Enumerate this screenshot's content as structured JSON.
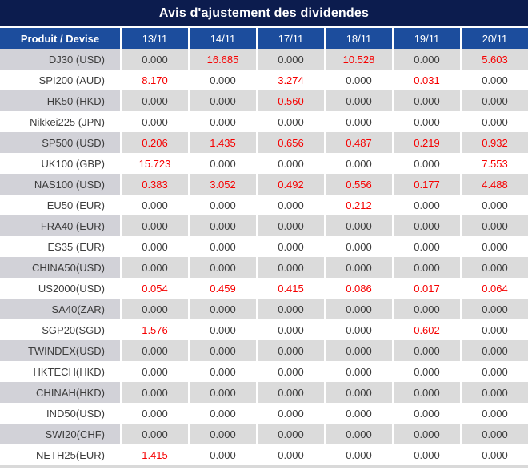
{
  "title": "Avis d'ajustement des dividendes",
  "colors": {
    "title_bg": "#0c1c4e",
    "header_bg": "#1c4d9d",
    "gray_row": "#dbdbdb",
    "gray_first_col": "#d2d2d8",
    "grid_line": "#d9d9d9",
    "nonzero_red": "#f60000",
    "value_text": "#3d3d3d"
  },
  "chart_data": {
    "type": "table",
    "title": "Avis d'ajustement des dividendes",
    "columns": [
      "Produit / Devise",
      "13/11",
      "14/11",
      "17/11",
      "18/11",
      "19/11",
      "20/11"
    ],
    "nonzero_values_shown_in_red": true,
    "rows": [
      {
        "product": "DJ30 (USD)",
        "values": [
          "0.000",
          "16.685",
          "0.000",
          "10.528",
          "0.000",
          "5.603"
        ]
      },
      {
        "product": "SPI200 (AUD)",
        "values": [
          "8.170",
          "0.000",
          "3.274",
          "0.000",
          "0.031",
          "0.000"
        ]
      },
      {
        "product": "HK50 (HKD)",
        "values": [
          "0.000",
          "0.000",
          "0.560",
          "0.000",
          "0.000",
          "0.000"
        ]
      },
      {
        "product": "Nikkei225 (JPN)",
        "values": [
          "0.000",
          "0.000",
          "0.000",
          "0.000",
          "0.000",
          "0.000"
        ]
      },
      {
        "product": "SP500 (USD)",
        "values": [
          "0.206",
          "1.435",
          "0.656",
          "0.487",
          "0.219",
          "0.932"
        ]
      },
      {
        "product": "UK100 (GBP)",
        "values": [
          "15.723",
          "0.000",
          "0.000",
          "0.000",
          "0.000",
          "7.553"
        ]
      },
      {
        "product": "NAS100 (USD)",
        "values": [
          "0.383",
          "3.052",
          "0.492",
          "0.556",
          "0.177",
          "4.488"
        ]
      },
      {
        "product": "EU50 (EUR)",
        "values": [
          "0.000",
          "0.000",
          "0.000",
          "0.212",
          "0.000",
          "0.000"
        ]
      },
      {
        "product": "FRA40 (EUR)",
        "values": [
          "0.000",
          "0.000",
          "0.000",
          "0.000",
          "0.000",
          "0.000"
        ]
      },
      {
        "product": "ES35 (EUR)",
        "values": [
          "0.000",
          "0.000",
          "0.000",
          "0.000",
          "0.000",
          "0.000"
        ]
      },
      {
        "product": "CHINA50(USD)",
        "values": [
          "0.000",
          "0.000",
          "0.000",
          "0.000",
          "0.000",
          "0.000"
        ]
      },
      {
        "product": "US2000(USD)",
        "values": [
          "0.054",
          "0.459",
          "0.415",
          "0.086",
          "0.017",
          "0.064"
        ]
      },
      {
        "product": "SA40(ZAR)",
        "values": [
          "0.000",
          "0.000",
          "0.000",
          "0.000",
          "0.000",
          "0.000"
        ]
      },
      {
        "product": "SGP20(SGD)",
        "values": [
          "1.576",
          "0.000",
          "0.000",
          "0.000",
          "0.602",
          "0.000"
        ]
      },
      {
        "product": "TWINDEX(USD)",
        "values": [
          "0.000",
          "0.000",
          "0.000",
          "0.000",
          "0.000",
          "0.000"
        ]
      },
      {
        "product": "HKTECH(HKD)",
        "values": [
          "0.000",
          "0.000",
          "0.000",
          "0.000",
          "0.000",
          "0.000"
        ]
      },
      {
        "product": "CHINAH(HKD)",
        "values": [
          "0.000",
          "0.000",
          "0.000",
          "0.000",
          "0.000",
          "0.000"
        ]
      },
      {
        "product": "IND50(USD)",
        "values": [
          "0.000",
          "0.000",
          "0.000",
          "0.000",
          "0.000",
          "0.000"
        ]
      },
      {
        "product": "SWI20(CHF)",
        "values": [
          "0.000",
          "0.000",
          "0.000",
          "0.000",
          "0.000",
          "0.000"
        ]
      },
      {
        "product": "NETH25(EUR)",
        "values": [
          "1.415",
          "0.000",
          "0.000",
          "0.000",
          "0.000",
          "0.000"
        ]
      }
    ]
  }
}
